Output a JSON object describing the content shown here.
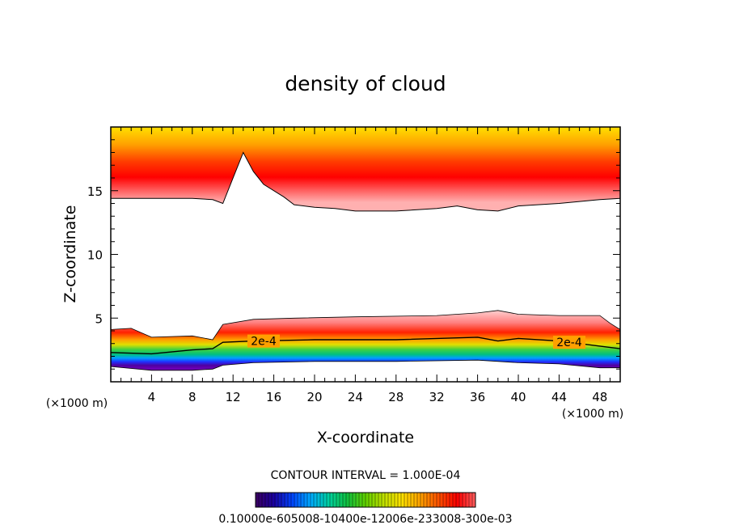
{
  "chart_data": {
    "type": "heatmap",
    "title": "density of cloud",
    "xlabel": "X-coordinate",
    "ylabel": "Z-coordinate",
    "x_unit": "(×1000 m)",
    "xlim": [
      0,
      50
    ],
    "ylim": [
      0,
      20
    ],
    "xticks": [
      4,
      8,
      12,
      16,
      20,
      24,
      28,
      32,
      36,
      40,
      44,
      48
    ],
    "yticks": [
      5,
      10,
      15
    ],
    "contour_interval_text": "CONTOUR INTERVAL = 1.000E-04",
    "contour_label": "2e-4",
    "colorbar_labels_text": "0.10000e-605008-10400e-12006e-233008-300e-03",
    "upper_layer": {
      "top": 19.8,
      "base": [
        [
          0,
          14.4
        ],
        [
          8,
          14.4
        ],
        [
          10,
          14.3
        ],
        [
          11,
          14
        ],
        [
          12,
          16
        ],
        [
          13,
          18
        ],
        [
          14,
          16.5
        ],
        [
          15,
          15.5
        ],
        [
          17,
          14.5
        ],
        [
          18,
          13.9
        ],
        [
          20,
          13.7
        ],
        [
          22,
          13.6
        ],
        [
          24,
          13.4
        ],
        [
          28,
          13.4
        ],
        [
          32,
          13.6
        ],
        [
          34,
          13.8
        ],
        [
          36,
          13.5
        ],
        [
          38,
          13.4
        ],
        [
          40,
          13.8
        ],
        [
          44,
          14.0
        ],
        [
          48,
          14.3
        ],
        [
          50,
          14.4
        ]
      ],
      "color_stops": [
        [
          19.8,
          "#ffd700"
        ],
        [
          18.6,
          "#ffa000"
        ],
        [
          17.2,
          "#ff3a00"
        ],
        [
          16.0,
          "#ff0000"
        ],
        [
          15.0,
          "#ff5a5a"
        ],
        [
          14.0,
          "#ffb0b0"
        ]
      ]
    },
    "lower_layer": {
      "top": [
        [
          0,
          4.1
        ],
        [
          2,
          4.2
        ],
        [
          4,
          3.5
        ],
        [
          8,
          3.6
        ],
        [
          10,
          3.3
        ],
        [
          11,
          4.5
        ],
        [
          14,
          4.9
        ],
        [
          18,
          5.0
        ],
        [
          24,
          5.1
        ],
        [
          32,
          5.2
        ],
        [
          36,
          5.4
        ],
        [
          38,
          5.6
        ],
        [
          40,
          5.3
        ],
        [
          44,
          5.2
        ],
        [
          48,
          5.2
        ],
        [
          49,
          4.6
        ],
        [
          50,
          4.1
        ]
      ],
      "contour_2e4": [
        [
          0,
          2.3
        ],
        [
          4,
          2.2
        ],
        [
          8,
          2.5
        ],
        [
          10,
          2.6
        ],
        [
          11,
          3.1
        ],
        [
          14,
          3.2
        ],
        [
          20,
          3.3
        ],
        [
          28,
          3.3
        ],
        [
          36,
          3.5
        ],
        [
          38,
          3.2
        ],
        [
          40,
          3.4
        ],
        [
          44,
          3.2
        ],
        [
          48,
          2.8
        ],
        [
          50,
          2.6
        ]
      ],
      "base": [
        [
          0,
          1.2
        ],
        [
          4,
          0.9
        ],
        [
          8,
          0.9
        ],
        [
          10,
          1.0
        ],
        [
          11,
          1.3
        ],
        [
          14,
          1.5
        ],
        [
          20,
          1.6
        ],
        [
          28,
          1.6
        ],
        [
          36,
          1.7
        ],
        [
          40,
          1.5
        ],
        [
          44,
          1.4
        ],
        [
          48,
          1.1
        ],
        [
          50,
          1.1
        ]
      ]
    },
    "colorbar_colors": [
      "#3b0060",
      "#1a00a0",
      "#0044ff",
      "#00aaff",
      "#00d0a0",
      "#10c040",
      "#60d000",
      "#c0e000",
      "#ffe000",
      "#ffa000",
      "#ff5000",
      "#ff0000",
      "#ff6060"
    ]
  }
}
